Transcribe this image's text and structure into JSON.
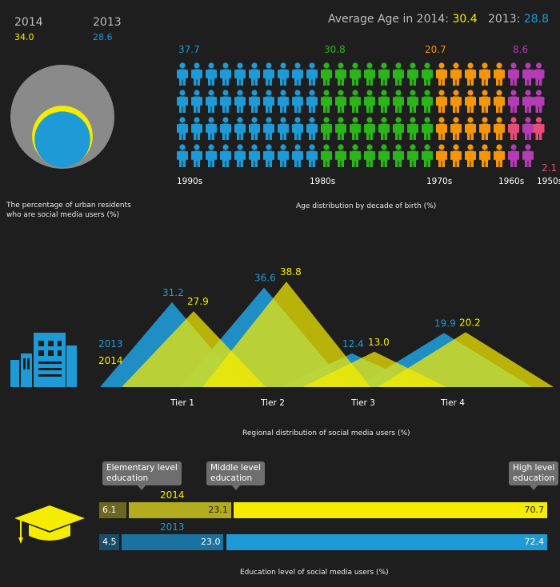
{
  "header": {
    "year_2014": "2014",
    "year_2013": "2013",
    "value_2014": "34.0",
    "value_2013": "28.6",
    "avg_label": "Average Age in 2014:",
    "avg_2014": "30.4",
    "avg_2013_label": "2013:",
    "avg_2013": "28.8"
  },
  "colors": {
    "yellow_2014": "#f5ec00",
    "blue_2013": "#1e9ad6",
    "decade_1990s": "#1e9ad6",
    "decade_1980s": "#2bb51a",
    "decade_1970s": "#f5960a",
    "decade_1960s": "#b43cb4",
    "decade_1950s": "#e84c78"
  },
  "chart_data": [
    {
      "type": "pie",
      "title": "The percentage of urban residents who are social media users (%)",
      "caption_line1": "The percentage of urban residents",
      "caption_line2": "who are social media users (%)",
      "series": [
        {
          "name": "2014",
          "value": 34.0
        },
        {
          "name": "2013",
          "value": 28.6
        }
      ]
    },
    {
      "type": "bar",
      "title": "Age distribution by decade of birth (%)",
      "categories": [
        "1990s",
        "1980s",
        "1970s",
        "1960s",
        "1950s"
      ],
      "values": [
        37.7,
        30.8,
        20.7,
        8.6,
        2.1
      ],
      "value_labels": [
        "37.7",
        "30.8",
        "20.7",
        "8.6",
        "2.1"
      ]
    },
    {
      "type": "area",
      "title": "Regional distribution of social media users (%)",
      "categories": [
        "Tier 1",
        "Tier 2",
        "Tier 3",
        "Tier 4"
      ],
      "series": [
        {
          "name": "2013",
          "values": [
            31.2,
            36.6,
            12.4,
            19.9
          ],
          "labels": [
            "31.2",
            "36.6",
            "12.4",
            "19.9"
          ]
        },
        {
          "name": "2014",
          "values": [
            27.9,
            38.8,
            13.0,
            20.2
          ],
          "labels": [
            "27.9",
            "38.8",
            "13.0",
            "20.2"
          ]
        }
      ]
    },
    {
      "type": "bar",
      "title": "Education level of social media users (%)",
      "categories": [
        "Elementary level education",
        "Middle level education",
        "High level education"
      ],
      "category_lines": [
        [
          "Elementary level",
          "education"
        ],
        [
          "Middle level",
          "education"
        ],
        [
          "High level",
          "education"
        ]
      ],
      "series": [
        {
          "name": "2014",
          "values": [
            6.1,
            23.1,
            70.7
          ],
          "labels": [
            "6.1",
            "23.1",
            "70.7"
          ]
        },
        {
          "name": "2013",
          "values": [
            4.5,
            23.0,
            72.4
          ],
          "labels": [
            "4.5",
            "23.0",
            "72.4"
          ]
        }
      ]
    }
  ],
  "icons": {
    "person": "person-icon",
    "buildings": "buildings-icon",
    "graduation_cap": "graduation-cap-icon"
  }
}
